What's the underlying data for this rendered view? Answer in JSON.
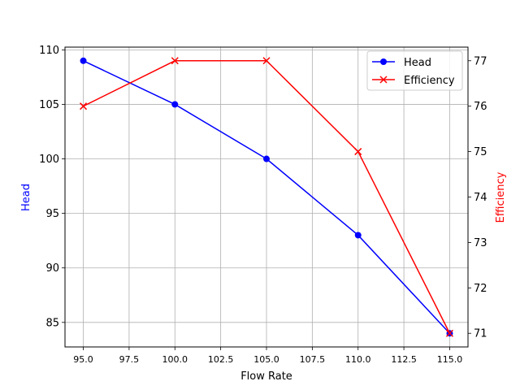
{
  "chart_data": {
    "type": "line",
    "title": "",
    "xlabel": "Flow Rate",
    "x": [
      95,
      100,
      105,
      110,
      115
    ],
    "xlim": [
      94.0,
      116.0
    ],
    "xticks": [
      "95.0",
      "97.5",
      "100.0",
      "102.5",
      "105.0",
      "107.5",
      "110.0",
      "112.5",
      "115.0"
    ],
    "grid": true,
    "legend_position": "upper right",
    "series": [
      {
        "name": "Head",
        "axis": "left",
        "color": "#0000ff",
        "marker": "circle",
        "values": [
          109,
          105,
          100,
          93,
          84
        ]
      },
      {
        "name": "Efficiency",
        "axis": "right",
        "color": "#ff0000",
        "marker": "x",
        "values": [
          76,
          77,
          77,
          75,
          71
        ]
      }
    ],
    "left_axis": {
      "label": "Head",
      "label_color": "#0000ff",
      "ylim": [
        82.75,
        110.25
      ],
      "ticks": [
        "85",
        "90",
        "95",
        "100",
        "105",
        "110"
      ]
    },
    "right_axis": {
      "label": "Efficiency",
      "label_color": "#ff0000",
      "ylim": [
        70.7,
        77.3
      ],
      "ticks": [
        "71",
        "72",
        "73",
        "74",
        "75",
        "76",
        "77"
      ]
    }
  }
}
